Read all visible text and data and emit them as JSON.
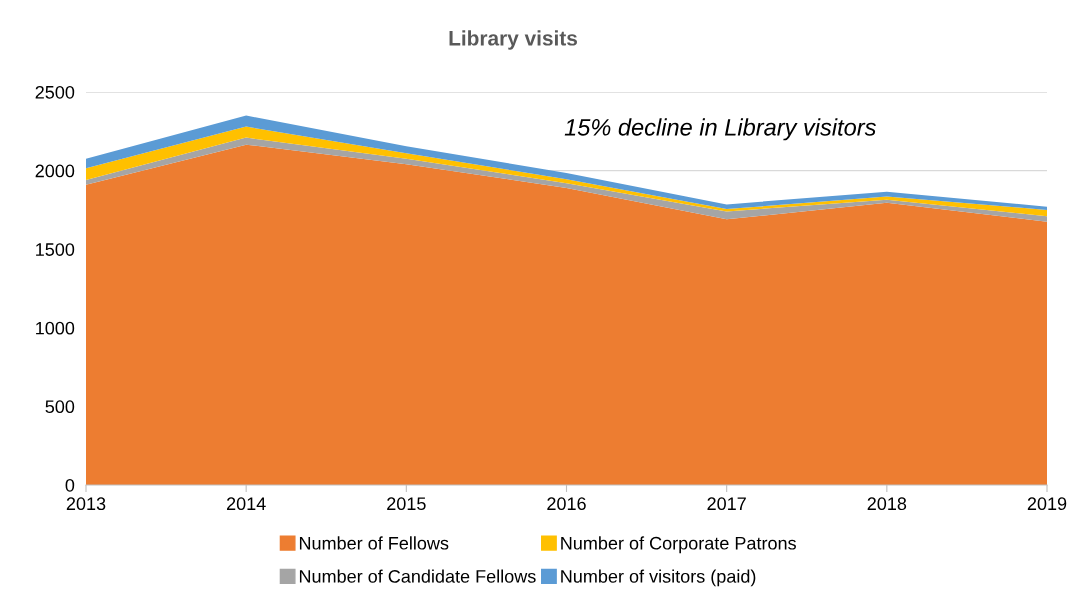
{
  "chart_data": {
    "type": "area",
    "stacked": true,
    "title": "Library visits",
    "x": [
      2013,
      2014,
      2015,
      2016,
      2017,
      2018,
      2019
    ],
    "xlim": [
      2013,
      2019
    ],
    "xticks": [
      2013,
      2014,
      2015,
      2016,
      2017,
      2018,
      2019
    ],
    "ylim": [
      0,
      2500
    ],
    "yticks": [
      0,
      500,
      1000,
      1500,
      2000,
      2500
    ],
    "grid": "y",
    "legend": "bottom",
    "annotations": [
      "15% decline in Library visitors"
    ],
    "series": [
      {
        "name": "Number of Fellows",
        "color": "#ed7d31",
        "values": [
          1910,
          2165,
          2040,
          1890,
          1690,
          1795,
          1675
        ]
      },
      {
        "name": "Number of Candidate Fellows",
        "color": "#a5a5a5",
        "values": [
          30,
          45,
          35,
          30,
          50,
          20,
          35
        ]
      },
      {
        "name": "Number of Corporate Patrons",
        "color": "#ffc000",
        "values": [
          75,
          70,
          35,
          25,
          15,
          20,
          40
        ]
      },
      {
        "name": "Number of visitors (paid)",
        "color": "#5b9bd5",
        "values": [
          60,
          70,
          45,
          40,
          30,
          30,
          20
        ]
      }
    ]
  }
}
